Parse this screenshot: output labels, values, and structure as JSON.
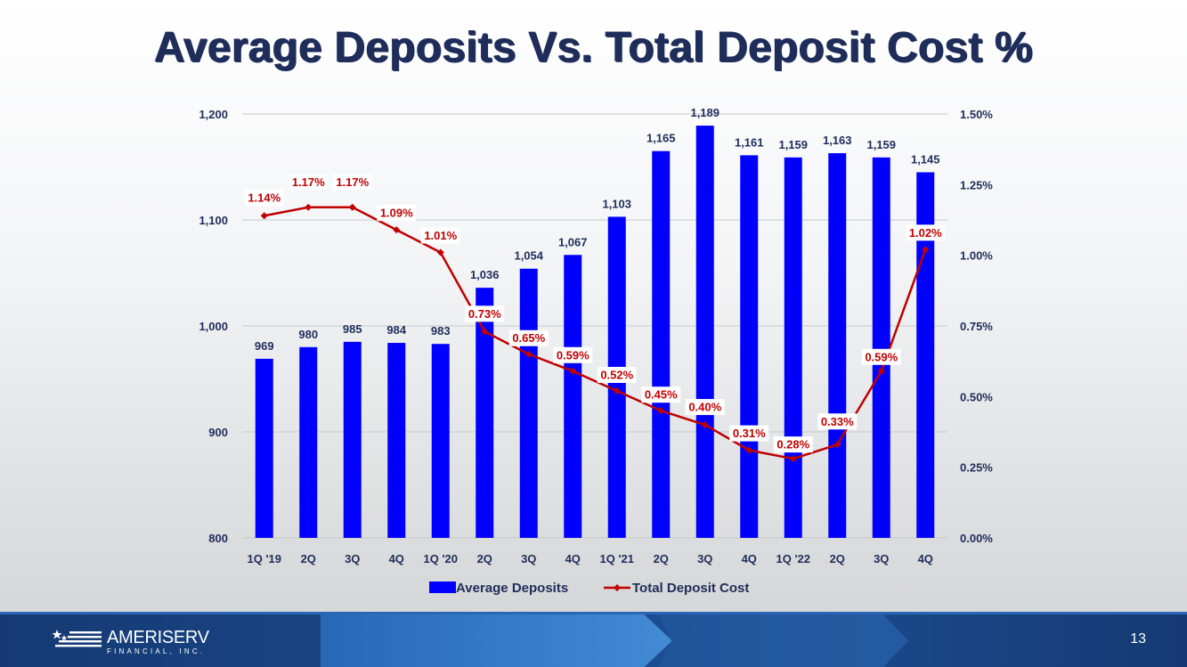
{
  "slide": {
    "title": "Average Deposits Vs. Total Deposit Cost %",
    "page_number": "13"
  },
  "footer": {
    "brand": "AMERISERV",
    "brand_sub": "FINANCIAL, INC."
  },
  "colors": {
    "title": "#1f2d5a",
    "bar": "#0000ff",
    "line": "#c00000",
    "axis_text": "#1f2d5a",
    "gridline": "#c8c8c8"
  },
  "chart_data": {
    "type": "bar",
    "title": "Average Deposits Vs. Total Deposit Cost %",
    "categories": [
      "1Q '19",
      "2Q",
      "3Q",
      "4Q",
      "1Q '20",
      "2Q",
      "3Q",
      "4Q",
      "1Q '21",
      "2Q",
      "3Q",
      "4Q",
      "1Q '22",
      "2Q",
      "3Q",
      "4Q"
    ],
    "series": [
      {
        "name": "Average Deposits",
        "type": "bar",
        "axis": "left",
        "values": [
          969,
          980,
          985,
          984,
          983,
          1036,
          1054,
          1067,
          1103,
          1165,
          1189,
          1161,
          1159,
          1163,
          1159,
          1145
        ],
        "labels": [
          "969",
          "980",
          "985",
          "984",
          "983",
          "1,036",
          "1,054",
          "1,067",
          "1,103",
          "1,165",
          "1,189",
          "1,161",
          "1,159",
          "1,163",
          "1,159",
          "1,145"
        ]
      },
      {
        "name": "Total Deposit Cost",
        "type": "line",
        "axis": "right",
        "values": [
          1.14,
          1.17,
          1.17,
          1.09,
          1.01,
          0.73,
          0.65,
          0.59,
          0.52,
          0.45,
          0.4,
          0.31,
          0.28,
          0.33,
          0.59,
          1.02
        ],
        "labels": [
          "1.14%",
          "1.17%",
          "1.17%",
          "1.09%",
          "1.01%",
          "0.73%",
          "0.65%",
          "0.59%",
          "0.52%",
          "0.45%",
          "0.40%",
          "0.31%",
          "0.28%",
          "0.33%",
          "0.59%",
          "1.02%"
        ]
      }
    ],
    "left_axis": {
      "ylim": [
        800,
        1200
      ],
      "ticks": [
        800,
        900,
        1000,
        1100,
        1200
      ],
      "tick_labels": [
        "800",
        "900",
        "1,000",
        "1,100",
        "1,200"
      ]
    },
    "right_axis": {
      "ylim": [
        0,
        1.5
      ],
      "ticks": [
        0,
        0.25,
        0.5,
        0.75,
        1.0,
        1.25,
        1.5
      ],
      "tick_labels": [
        "0.00%",
        "0.25%",
        "0.50%",
        "0.75%",
        "1.00%",
        "1.25%",
        "1.50%"
      ]
    },
    "grid": true,
    "legend": "bottom-center"
  }
}
